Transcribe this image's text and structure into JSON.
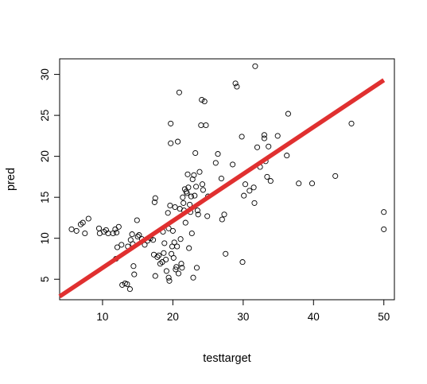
{
  "chart_data": {
    "type": "scatter",
    "xlabel": "testtarget",
    "ylabel": "pred",
    "x_ticks": [
      10,
      20,
      30,
      40,
      50
    ],
    "y_ticks": [
      5,
      10,
      15,
      20,
      25,
      30
    ],
    "xlim": [
      3.9,
      51.5
    ],
    "ylim": [
      2.5,
      31.9
    ],
    "grid": false,
    "points": [
      [
        5.6,
        11.1
      ],
      [
        6.3,
        10.9
      ],
      [
        6.9,
        11.7
      ],
      [
        7.2,
        11.9
      ],
      [
        7.5,
        10.6
      ],
      [
        8.0,
        12.4
      ],
      [
        9.5,
        11.2
      ],
      [
        9.6,
        10.6
      ],
      [
        10.2,
        10.8
      ],
      [
        10.5,
        11.0
      ],
      [
        10.8,
        10.6
      ],
      [
        11.5,
        10.6
      ],
      [
        11.8,
        11.1
      ],
      [
        12.0,
        10.7
      ],
      [
        12.1,
        8.9
      ],
      [
        12.3,
        11.4
      ],
      [
        11.9,
        7.5
      ],
      [
        12.7,
        9.2
      ],
      [
        12.8,
        4.3
      ],
      [
        13.2,
        4.5
      ],
      [
        13.5,
        4.4
      ],
      [
        13.6,
        9.0
      ],
      [
        13.9,
        3.8
      ],
      [
        14.0,
        9.8
      ],
      [
        14.2,
        10.5
      ],
      [
        14.3,
        9.3
      ],
      [
        14.4,
        6.6
      ],
      [
        14.5,
        5.6
      ],
      [
        14.9,
        12.2
      ],
      [
        15.0,
        10.2
      ],
      [
        15.2,
        10.4
      ],
      [
        15.6,
        9.9
      ],
      [
        16.0,
        9.2
      ],
      [
        16.4,
        9.7
      ],
      [
        16.8,
        10.0
      ],
      [
        17.2,
        9.8
      ],
      [
        17.3,
        8.0
      ],
      [
        17.4,
        14.4
      ],
      [
        17.5,
        14.9
      ],
      [
        17.5,
        5.4
      ],
      [
        17.8,
        7.7
      ],
      [
        18.0,
        7.9
      ],
      [
        18.2,
        6.9
      ],
      [
        18.5,
        7.1
      ],
      [
        18.6,
        10.8
      ],
      [
        18.7,
        8.2
      ],
      [
        18.8,
        9.4
      ],
      [
        19.0,
        7.4
      ],
      [
        19.1,
        6.0
      ],
      [
        19.3,
        13.1
      ],
      [
        19.4,
        11.2
      ],
      [
        19.4,
        5.2
      ],
      [
        19.5,
        4.8
      ],
      [
        19.6,
        14.0
      ],
      [
        19.7,
        21.6
      ],
      [
        19.7,
        24.0
      ],
      [
        19.8,
        8.1
      ],
      [
        19.9,
        9.0
      ],
      [
        20.0,
        10.9
      ],
      [
        20.1,
        7.6
      ],
      [
        20.2,
        9.5
      ],
      [
        20.3,
        13.8
      ],
      [
        20.4,
        6.2
      ],
      [
        20.5,
        6.5
      ],
      [
        20.6,
        9.0
      ],
      [
        20.7,
        21.8
      ],
      [
        20.8,
        5.7
      ],
      [
        20.9,
        27.8
      ],
      [
        21.0,
        13.6
      ],
      [
        21.1,
        9.9
      ],
      [
        21.2,
        6.9
      ],
      [
        21.3,
        6.4
      ],
      [
        21.4,
        15.0
      ],
      [
        21.5,
        14.3
      ],
      [
        21.6,
        13.4
      ],
      [
        21.7,
        16.0
      ],
      [
        21.8,
        11.9
      ],
      [
        21.9,
        15.7
      ],
      [
        22.0,
        15.5
      ],
      [
        22.1,
        17.8
      ],
      [
        22.2,
        16.2
      ],
      [
        22.3,
        8.8
      ],
      [
        22.4,
        14.1
      ],
      [
        22.5,
        13.2
      ],
      [
        22.6,
        15.1
      ],
      [
        22.7,
        10.6
      ],
      [
        22.8,
        17.2
      ],
      [
        22.9,
        5.2
      ],
      [
        23.0,
        17.7
      ],
      [
        23.1,
        15.2
      ],
      [
        23.2,
        20.4
      ],
      [
        23.3,
        16.3
      ],
      [
        23.4,
        6.4
      ],
      [
        23.5,
        13.4
      ],
      [
        23.6,
        12.9
      ],
      [
        23.8,
        18.1
      ],
      [
        24.0,
        23.8
      ],
      [
        24.1,
        26.9
      ],
      [
        24.2,
        16.6
      ],
      [
        24.3,
        15.9
      ],
      [
        24.5,
        26.7
      ],
      [
        24.7,
        23.8
      ],
      [
        24.9,
        12.7
      ],
      [
        25.0,
        15.1
      ],
      [
        26.1,
        19.2
      ],
      [
        26.4,
        20.3
      ],
      [
        26.9,
        17.3
      ],
      [
        27.0,
        12.3
      ],
      [
        27.3,
        12.9
      ],
      [
        27.5,
        8.1
      ],
      [
        28.5,
        19.0
      ],
      [
        28.9,
        28.9
      ],
      [
        29.1,
        28.5
      ],
      [
        29.8,
        22.4
      ],
      [
        29.9,
        7.1
      ],
      [
        30.1,
        15.2
      ],
      [
        30.3,
        16.6
      ],
      [
        30.9,
        15.8
      ],
      [
        31.5,
        16.2
      ],
      [
        31.6,
        14.3
      ],
      [
        31.7,
        31.0
      ],
      [
        32.0,
        21.1
      ],
      [
        32.4,
        18.7
      ],
      [
        33.0,
        22.2
      ],
      [
        33.0,
        22.6
      ],
      [
        33.2,
        19.4
      ],
      [
        33.4,
        17.5
      ],
      [
        33.6,
        21.2
      ],
      [
        33.9,
        17.0
      ],
      [
        34.9,
        22.5
      ],
      [
        36.2,
        20.1
      ],
      [
        36.4,
        25.2
      ],
      [
        37.9,
        16.7
      ],
      [
        39.8,
        16.7
      ],
      [
        43.1,
        17.6
      ],
      [
        45.4,
        24.0
      ],
      [
        50.0,
        13.2
      ],
      [
        50.0,
        11.1
      ]
    ],
    "regression_line": {
      "from": [
        3.9,
        2.9
      ],
      "to": [
        50.0,
        29.3
      ],
      "color": "#e03030"
    }
  }
}
